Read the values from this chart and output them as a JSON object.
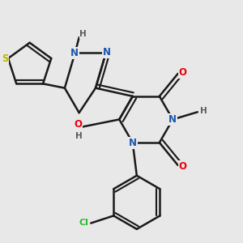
{
  "background_color": "#e8e8e8",
  "bond_color": "#1a1a1a",
  "bond_width": 1.8,
  "atom_colors": {
    "N": "#1a56b0",
    "O": "#e8000d",
    "S": "#b8b800",
    "Cl": "#2db82d",
    "H": "#5a5a5a"
  },
  "font_size": 8.5,
  "dbo": 0.012
}
